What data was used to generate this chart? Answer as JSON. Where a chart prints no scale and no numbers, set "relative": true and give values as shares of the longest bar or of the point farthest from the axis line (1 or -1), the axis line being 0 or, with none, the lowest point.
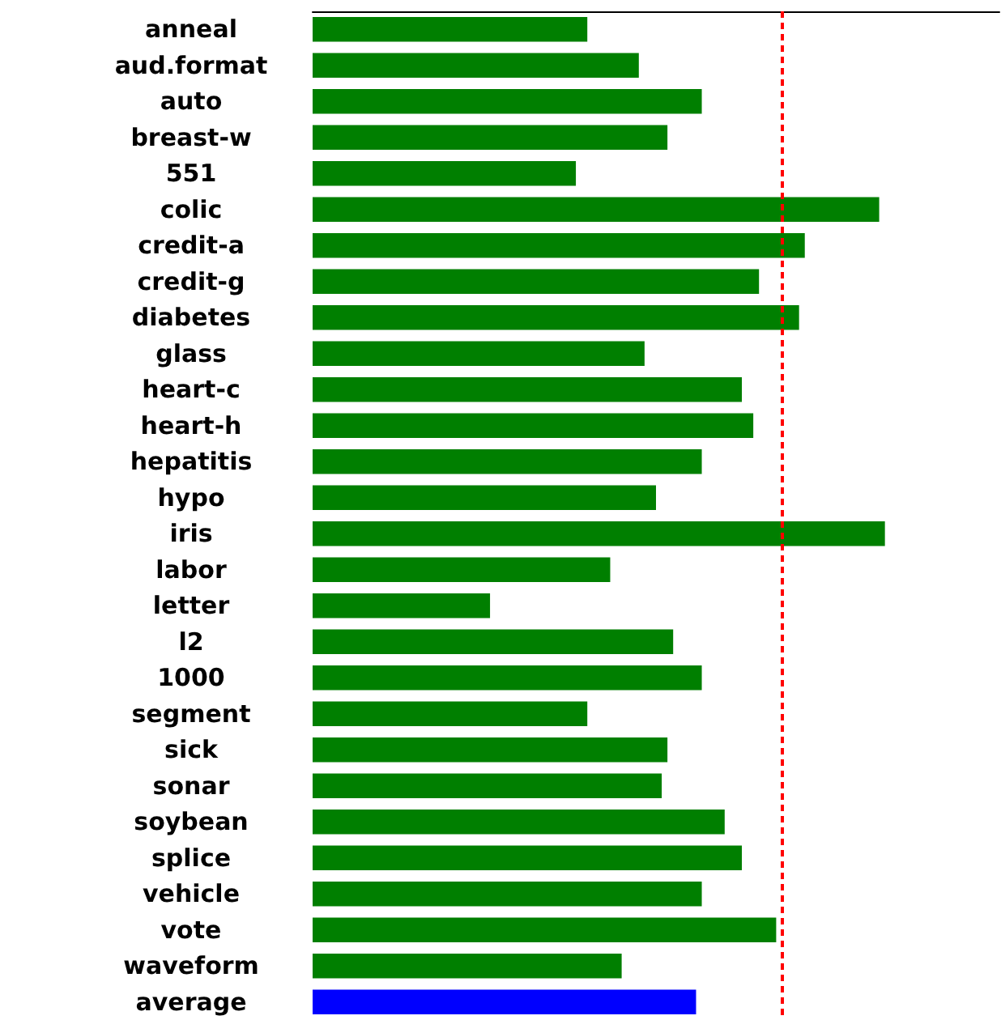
{
  "chart_data": {
    "type": "bar",
    "orientation": "horizontal",
    "relative": true,
    "categories": [
      "anneal",
      "aud.format",
      "auto",
      "breast-w",
      "551",
      "colic",
      "credit-a",
      "credit-g",
      "diabetes",
      "glass",
      "heart-c",
      "heart-h",
      "hepatitis",
      "hypo",
      "iris",
      "labor",
      "letter",
      "l2",
      "1000",
      "segment",
      "sick",
      "sonar",
      "soybean",
      "splice",
      "vehicle",
      "vote",
      "waveform",
      "average"
    ],
    "values": [
      0.48,
      0.57,
      0.68,
      0.62,
      0.46,
      0.99,
      0.86,
      0.78,
      0.85,
      0.58,
      0.75,
      0.77,
      0.68,
      0.6,
      1,
      0.52,
      0.31,
      0.63,
      0.68,
      0.48,
      0.62,
      0.61,
      0.72,
      0.75,
      0.68,
      0.81,
      0.54,
      0.67
    ],
    "colors": [
      "#007f00",
      "#007f00",
      "#007f00",
      "#007f00",
      "#007f00",
      "#007f00",
      "#007f00",
      "#007f00",
      "#007f00",
      "#007f00",
      "#007f00",
      "#007f00",
      "#007f00",
      "#007f00",
      "#007f00",
      "#007f00",
      "#007f00",
      "#007f00",
      "#007f00",
      "#007f00",
      "#007f00",
      "#007f00",
      "#007f00",
      "#007f00",
      "#007f00",
      "#007f00",
      "#007f00",
      "#0000ff"
    ],
    "ref_lines": [
      {
        "axis": "x",
        "value": 0.82,
        "color": "#ff0000",
        "line_style": "dashed"
      }
    ]
  }
}
